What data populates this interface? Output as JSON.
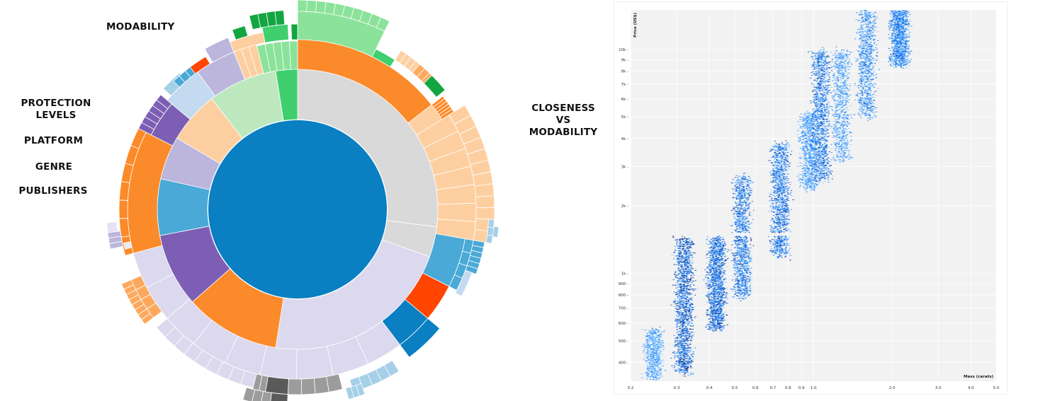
{
  "labels": {
    "modability": "MODABILITY",
    "protection_levels": "PROTECTION LEVELS",
    "platform": "PLATFORM",
    "genre": "GENRE",
    "publishers": "PUBLISHERS",
    "closeness_vs_modability": "CLOSENESS VS MODABILITY"
  },
  "chart_data": [
    {
      "type": "sunburst",
      "title": "",
      "rings": [
        "PUBLISHERS",
        "GENRE",
        "PLATFORM",
        "PROTECTION LEVELS",
        "MODABILITY"
      ],
      "root": {
        "color": "#0a7fc2",
        "share": 1.0
      },
      "platform_segments": [
        {
          "share": 0.27,
          "color": "#d9d9d9"
        },
        {
          "share": 0.035,
          "color": "#d9d9d9"
        },
        {
          "share": 0.22,
          "color": "#dcd8ee"
        },
        {
          "share": 0.11,
          "color": "#fb8a2a"
        },
        {
          "share": 0.085,
          "color": "#7c5fb4"
        },
        {
          "share": 0.065,
          "color": "#4aa9d6"
        },
        {
          "share": 0.05,
          "color": "#bcb5dc"
        },
        {
          "share": 0.06,
          "color": "#fdcfa0"
        },
        {
          "share": 0.08,
          "color": "#bde8be"
        },
        {
          "share": 0.025,
          "color": "#3fcf6e"
        }
      ],
      "colors": {
        "light_green": "#8be29a",
        "green": "#3fcf6e",
        "dark_green": "#13a541",
        "orange": "#fb8a2a",
        "peach": "#fdcfa0",
        "light_orange": "#fca95d",
        "purple": "#7c5fb4",
        "lavender": "#dcd8ee",
        "light_purple": "#bcb5dc",
        "light_blue": "#a6cfe8",
        "sky_blue": "#4aa9d6",
        "pale_blue": "#c3daf0",
        "red": "#ff4500",
        "blue": "#0a7fc2",
        "gray": "#d9d9d9",
        "dark_gray": "#5a5a5a",
        "mid_gray": "#9c9c9c"
      }
    },
    {
      "type": "heatmap",
      "title": "",
      "xlabel": "Mass (carats)",
      "ylabel": "Price (US$)",
      "x_scale": "log",
      "y_scale": "log",
      "xlim": [
        0.2,
        5.0
      ],
      "ylim": [
        330,
        15000
      ],
      "x_ticks": [
        0.2,
        0.3,
        0.4,
        0.5,
        0.6,
        0.7,
        0.8,
        0.9,
        1.0,
        2.0,
        3.0,
        4.0,
        5.0
      ],
      "x_tick_labels": [
        "0.2",
        "0.3",
        "0.4",
        "0.5",
        "0.6",
        "0.7",
        "0.8",
        "0.9",
        "1.0",
        "2.0",
        "3.0",
        "4.0",
        "5.0"
      ],
      "y_ticks": [
        400,
        500,
        600,
        700,
        800,
        900,
        1000,
        2000,
        3000,
        4000,
        5000,
        6000,
        7000,
        8000,
        9000,
        10000
      ],
      "y_tick_labels": [
        "400",
        "500",
        "600",
        "700",
        "800",
        "900",
        "1k",
        "2k",
        "3k",
        "4k",
        "5k",
        "6k",
        "7k",
        "8k",
        "9k",
        "10k"
      ],
      "background": "#f2f2f2",
      "color_low": "#e0f0ff",
      "color_high": "#08306b",
      "gap_price": 1500,
      "density_clusters": [
        {
          "mass": 0.23,
          "price_min": 340,
          "price_max": 560,
          "weight": 0.4
        },
        {
          "mass": 0.3,
          "price_min": 360,
          "price_max": 1450,
          "weight": 1.0
        },
        {
          "mass": 0.4,
          "price_min": 560,
          "price_max": 1450,
          "weight": 0.9
        },
        {
          "mass": 0.5,
          "price_min": 780,
          "price_max": 2700,
          "weight": 0.8
        },
        {
          "mass": 0.7,
          "price_min": 1200,
          "price_max": 3800,
          "weight": 0.8
        },
        {
          "mass": 0.9,
          "price_min": 2400,
          "price_max": 5200,
          "weight": 0.5
        },
        {
          "mass": 1.0,
          "price_min": 2600,
          "price_max": 9800,
          "weight": 0.8
        },
        {
          "mass": 1.2,
          "price_min": 3200,
          "price_max": 10000,
          "weight": 0.5
        },
        {
          "mass": 1.5,
          "price_min": 5000,
          "price_max": 15000,
          "weight": 0.6
        },
        {
          "mass": 2.0,
          "price_min": 8500,
          "price_max": 15000,
          "weight": 0.7
        }
      ]
    }
  ]
}
